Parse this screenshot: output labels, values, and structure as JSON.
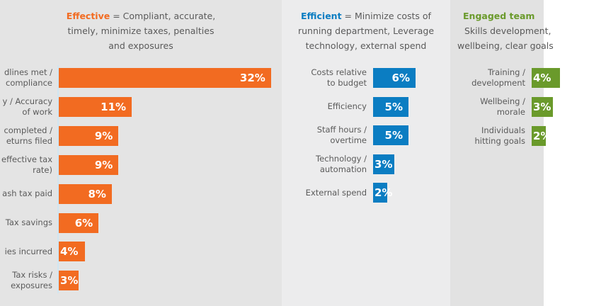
{
  "colors": {
    "effective": "#f26b21",
    "efficient": "#0b7dc2",
    "engaged": "#6a9a2b"
  },
  "chart_data": [
    {
      "type": "bar",
      "orientation": "horizontal",
      "title_key": "Effective",
      "title_rest": " = Compliant, accurate,",
      "title_line2": "timely, minimize taxes, penalties",
      "title_line3": "and exposures",
      "categories": [
        [
          "dlines met /",
          "compliance"
        ],
        [
          "y / Accuracy",
          "of work"
        ],
        [
          "completed /",
          "eturns filed"
        ],
        [
          "effective tax",
          "rate)"
        ],
        [
          "ash tax paid"
        ],
        [
          "Tax savings"
        ],
        [
          "ies incurred"
        ],
        [
          "Tax risks /",
          "exposures"
        ]
      ],
      "values": [
        32,
        11,
        9,
        9,
        8,
        6,
        4,
        3
      ],
      "labels": [
        "32%",
        "11%",
        "9%",
        "9%",
        "8%",
        "6%",
        "4%",
        "3%"
      ],
      "unit": "%"
    },
    {
      "type": "bar",
      "orientation": "horizontal",
      "title_key": "Efficient",
      "title_rest": " = Minimize costs of",
      "title_line2": "running department, Leverage",
      "title_line3": "technology, external spend",
      "categories": [
        [
          "Costs relative",
          "to budget"
        ],
        [
          "Efficiency"
        ],
        [
          "Staff hours /",
          "overtime"
        ],
        [
          "Technology /",
          "automation"
        ],
        [
          "External spend"
        ]
      ],
      "values": [
        6,
        5,
        5,
        3,
        2
      ],
      "labels": [
        "6%",
        "5%",
        "5%",
        "3%",
        "2%"
      ],
      "unit": "%"
    },
    {
      "type": "bar",
      "orientation": "horizontal",
      "title_key": "Engaged team",
      "title_rest": "",
      "title_line2": "Skills development,",
      "title_line3": "wellbeing, clear goals",
      "categories": [
        [
          "Training /",
          "development"
        ],
        [
          "Wellbeing /",
          "morale"
        ],
        [
          "Individuals",
          "hitting goals"
        ]
      ],
      "values": [
        4,
        3,
        2
      ],
      "labels": [
        "4%",
        "3%",
        "2%"
      ],
      "unit": "%"
    }
  ]
}
